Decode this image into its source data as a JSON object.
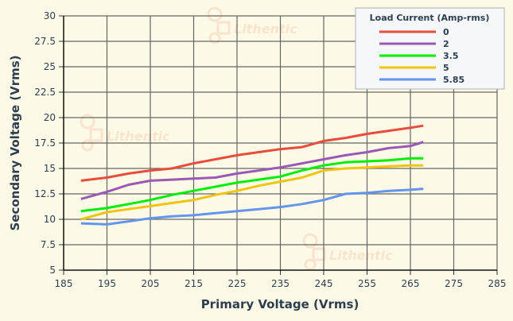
{
  "chart_data": {
    "type": "line",
    "title": "",
    "xlabel": "Primary Voltage (Vrms)",
    "ylabel": "Secondary Voltage (Vrms)",
    "xlim": [
      185,
      285
    ],
    "ylim": [
      5,
      30
    ],
    "xticks": [
      185,
      195,
      205,
      215,
      225,
      235,
      245,
      255,
      265,
      275,
      285
    ],
    "yticks": [
      "5",
      "7.5",
      "10",
      "12.5",
      "15",
      "17.5",
      "20",
      "22.5",
      "25",
      "27.5",
      "30"
    ],
    "grid": true,
    "legend_title": "Load Current (Amp-rms)",
    "legend_placement": "top-right",
    "watermark": "Lithentic",
    "x": [
      189,
      195,
      200,
      205,
      210,
      215,
      220,
      225,
      230,
      235,
      240,
      245,
      250,
      255,
      260,
      265,
      268
    ],
    "series": [
      {
        "name": "0",
        "color": "#e74c3c",
        "values": [
          13.8,
          14.1,
          14.5,
          14.8,
          15.0,
          15.5,
          15.9,
          16.3,
          16.6,
          16.9,
          17.1,
          17.7,
          18.0,
          18.4,
          18.7,
          19.0,
          19.2
        ]
      },
      {
        "name": "2",
        "color": "#9b59b6",
        "values": [
          12.0,
          12.7,
          13.4,
          13.8,
          13.9,
          14.0,
          14.1,
          14.5,
          14.8,
          15.1,
          15.5,
          15.9,
          16.3,
          16.6,
          17.0,
          17.2,
          17.6
        ]
      },
      {
        "name": "3.5",
        "color": "#00ee00",
        "values": [
          10.8,
          11.1,
          11.5,
          11.9,
          12.4,
          12.8,
          13.2,
          13.6,
          13.9,
          14.2,
          14.8,
          15.3,
          15.6,
          15.7,
          15.8,
          16.0,
          16.0
        ]
      },
      {
        "name": "5",
        "color": "#f1c40f",
        "values": [
          10.0,
          10.7,
          11.0,
          11.3,
          11.6,
          11.9,
          12.4,
          12.8,
          13.3,
          13.7,
          14.1,
          14.8,
          15.0,
          15.1,
          15.2,
          15.3,
          15.3
        ]
      },
      {
        "name": "5.85",
        "color": "#6495ed",
        "values": [
          9.6,
          9.5,
          9.8,
          10.1,
          10.3,
          10.4,
          10.6,
          10.8,
          11.0,
          11.2,
          11.5,
          11.9,
          12.5,
          12.6,
          12.8,
          12.9,
          13.0
        ]
      }
    ]
  }
}
